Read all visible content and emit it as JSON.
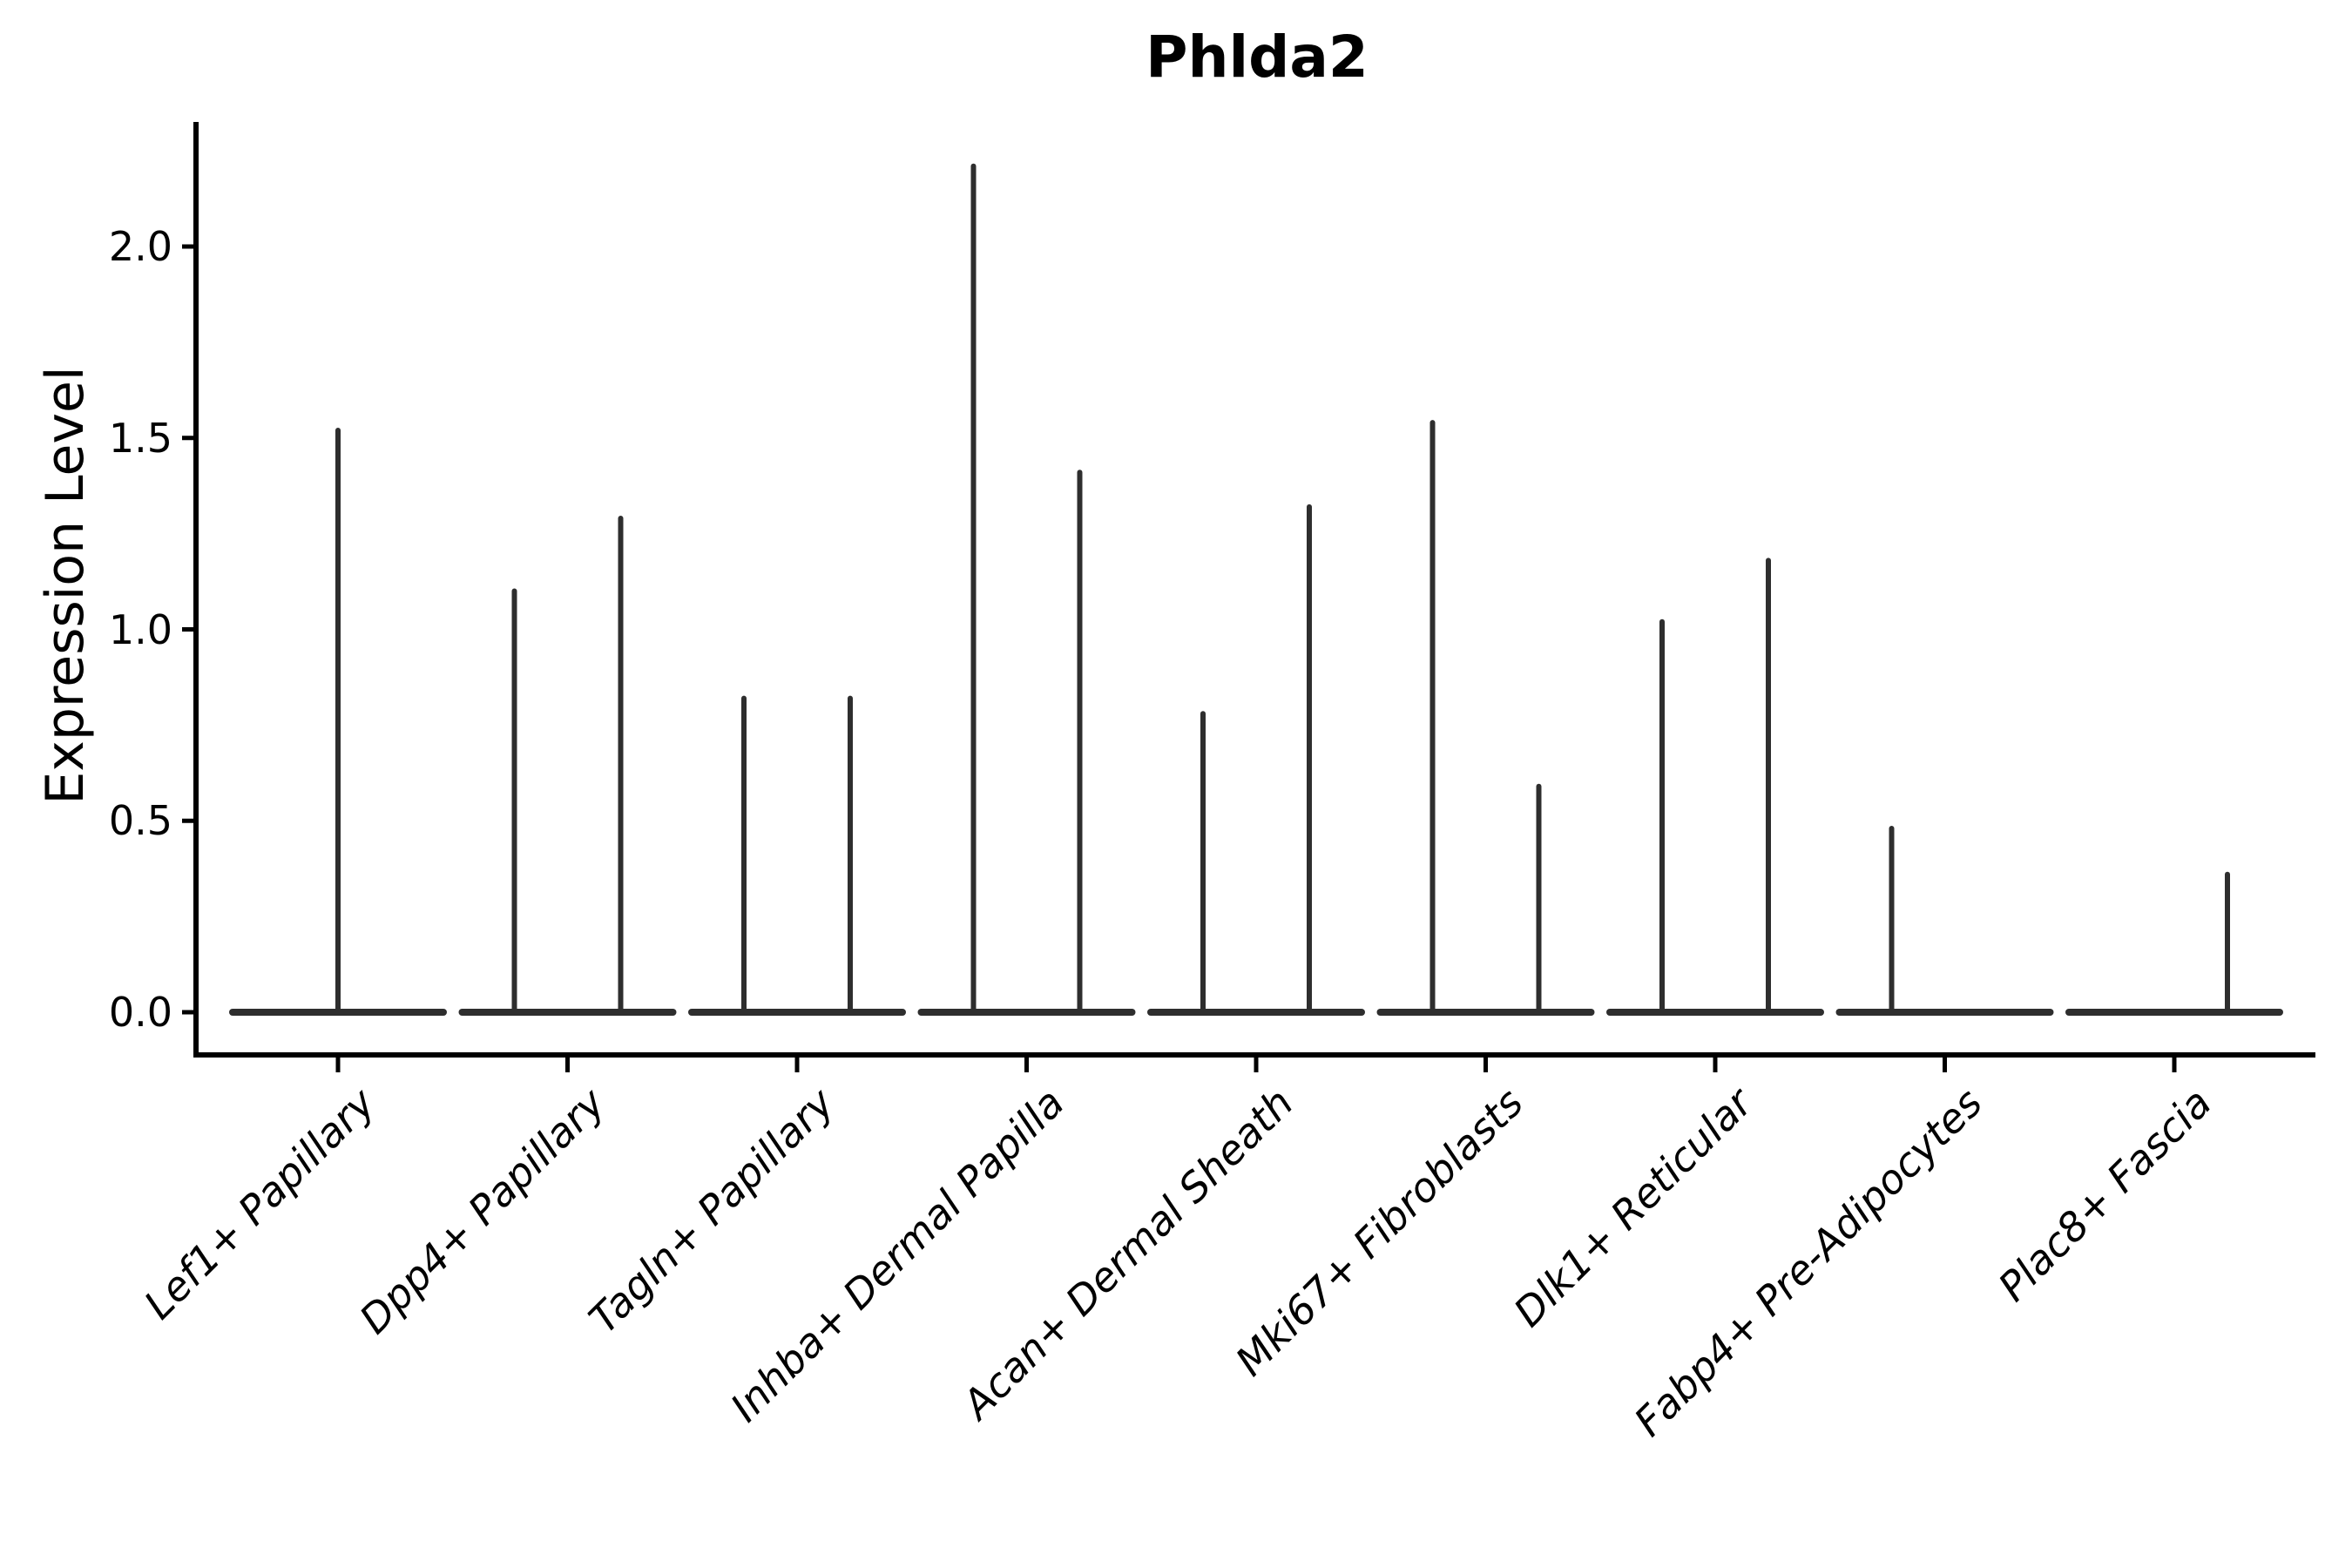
{
  "figure": {
    "title": "Phlda2",
    "ylabel": "Expression Level"
  },
  "chart_data": {
    "type": "violin",
    "title": "Phlda2",
    "subtitle": "",
    "xlabel": "",
    "ylabel": "Expression Level",
    "grid": false,
    "legend": "none",
    "ylim": [
      -0.11,
      2.33
    ],
    "ytick_values": [
      0.0,
      0.5,
      1.0,
      1.5,
      2.0
    ],
    "ytick_labels": [
      "0.0",
      "0.5",
      "1.0",
      "1.5",
      "2.0"
    ],
    "categories": [
      "Lef1+ Papillary",
      "Dpp4+ Papillary",
      "Tagln+ Papillary",
      "Inhba+ Dermal Papilla",
      "Acan+ Dermal Sheath",
      "Mki67+ Fibroblasts",
      "Dlk1+ Reticular",
      "Fabp4+ Pre-Adipocytes",
      "Plac8+ Fascia"
    ],
    "violins": [
      {
        "category": "Lef1+ Papillary",
        "spikes": [
          {
            "position": "center",
            "max_expression": 1.52
          }
        ]
      },
      {
        "category": "Dpp4+ Papillary",
        "spikes": [
          {
            "position": "left",
            "max_expression": 1.1
          },
          {
            "position": "right",
            "max_expression": 1.29
          }
        ]
      },
      {
        "category": "Tagln+ Papillary",
        "spikes": [
          {
            "position": "left",
            "max_expression": 0.82
          },
          {
            "position": "right",
            "max_expression": 0.82
          }
        ]
      },
      {
        "category": "Inhba+ Dermal Papilla",
        "spikes": [
          {
            "position": "left",
            "max_expression": 2.21
          },
          {
            "position": "right",
            "max_expression": 1.41
          }
        ]
      },
      {
        "category": "Acan+ Dermal Sheath",
        "spikes": [
          {
            "position": "left",
            "max_expression": 0.78
          },
          {
            "position": "right",
            "max_expression": 1.32
          }
        ]
      },
      {
        "category": "Mki67+ Fibroblasts",
        "spikes": [
          {
            "position": "left",
            "max_expression": 1.54
          },
          {
            "position": "right",
            "max_expression": 0.59
          }
        ]
      },
      {
        "category": "Dlk1+ Reticular",
        "spikes": [
          {
            "position": "left",
            "max_expression": 1.02
          },
          {
            "position": "right",
            "max_expression": 1.18
          }
        ]
      },
      {
        "category": "Fabp4+ Pre-Adipocytes",
        "spikes": [
          {
            "position": "left",
            "max_expression": 0.48
          }
        ]
      },
      {
        "category": "Plac8+ Fascia",
        "spikes": [
          {
            "position": "right",
            "max_expression": 0.36
          }
        ]
      }
    ],
    "colors": {
      "violin_stroke": "#2e2e2e",
      "axis": "#000000",
      "text": "#000000",
      "background": "#ffffff"
    }
  }
}
